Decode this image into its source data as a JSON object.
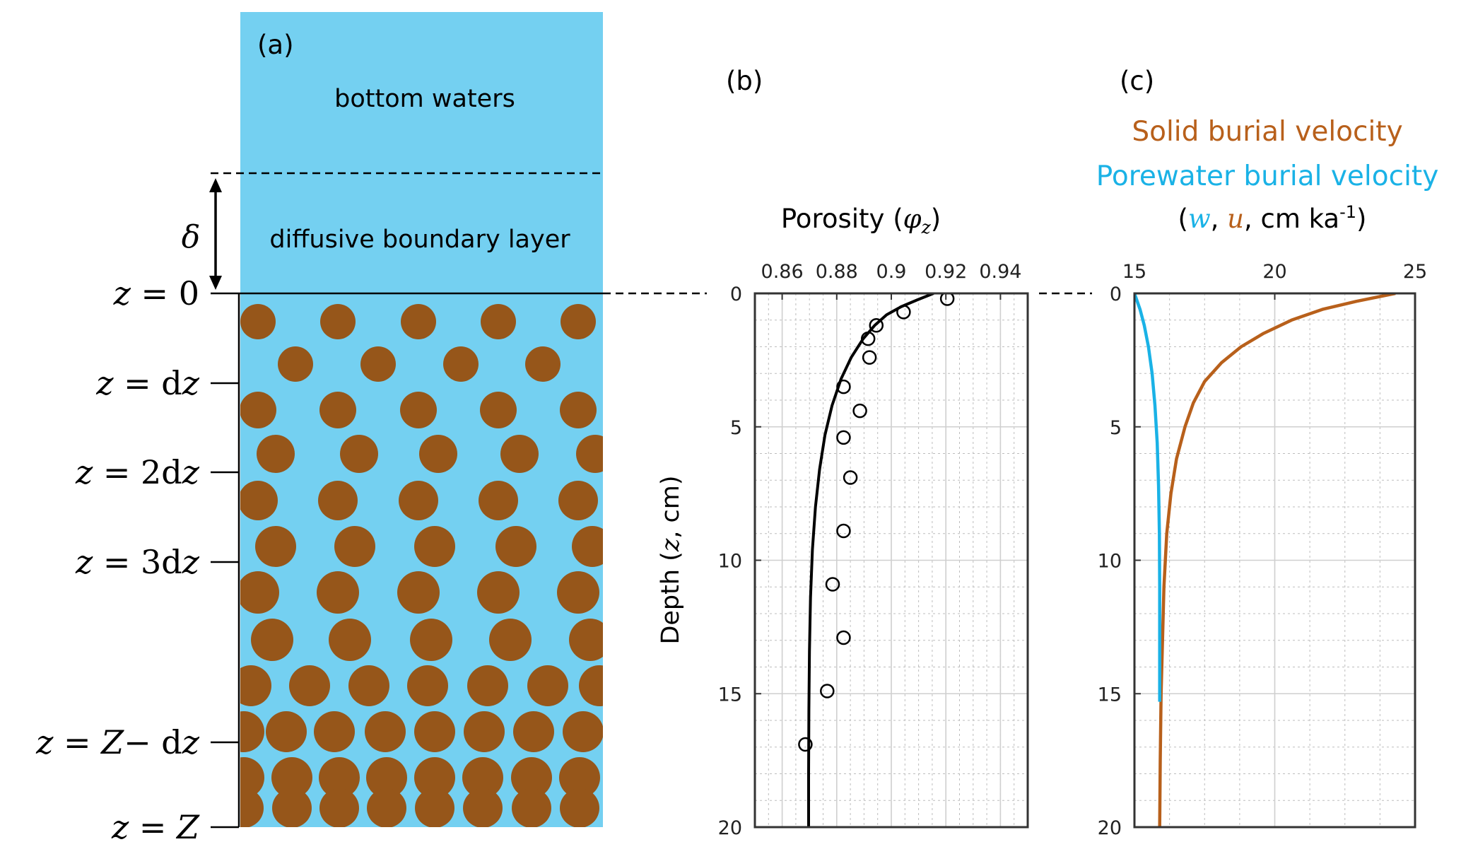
{
  "panel_a": {
    "label": "(a)",
    "water_label": "bottom waters",
    "dbl_label": "diffusive boundary layer",
    "delta_symbol": "δ",
    "depth_labels": [
      {
        "left": "z",
        "right": "0"
      },
      {
        "left": "z",
        "right": "dz"
      },
      {
        "left": "z",
        "right": "2dz"
      },
      {
        "left": "z",
        "right": "3dz"
      },
      {
        "left": "z",
        "right": "Z− dz"
      },
      {
        "left": "z",
        "right": "Z"
      }
    ],
    "colors": {
      "water": "#74D0F1",
      "grain": "#96561A"
    }
  },
  "chart_data": [
    {
      "type": "scatter",
      "panel_label": "(b)",
      "title": "Porosity (φz)",
      "xlabel": "Porosity (φz)",
      "ylabel": "Depth (z, cm)",
      "x_axis_position": "top",
      "y_reversed": true,
      "xlim": [
        0.85,
        0.95
      ],
      "ylim": [
        0,
        20
      ],
      "xticks": [
        0.86,
        0.88,
        0.9,
        0.92,
        0.94
      ],
      "xtick_labels": [
        "0.86",
        "0.88",
        "0.9",
        "0.92",
        "0.94"
      ],
      "yticks": [
        0,
        5,
        10,
        15,
        20
      ],
      "ytick_labels": [
        "0",
        "5",
        "10",
        "15",
        "20"
      ],
      "grid": true,
      "series": [
        {
          "kind": "line",
          "color": "#000000",
          "points": [
            [
              0.9155,
              0
            ],
            [
              0.9094,
              0.25
            ],
            [
              0.9036,
              0.5
            ],
            [
              0.8983,
              0.8
            ],
            [
              0.8939,
              1.2
            ],
            [
              0.8897,
              1.7
            ],
            [
              0.8853,
              2.4
            ],
            [
              0.8816,
              3.2
            ],
            [
              0.8783,
              4.2
            ],
            [
              0.8757,
              5.3
            ],
            [
              0.8737,
              6.6
            ],
            [
              0.8722,
              8.0
            ],
            [
              0.8711,
              9.6
            ],
            [
              0.8704,
              11.4
            ],
            [
              0.87,
              13.4
            ],
            [
              0.8698,
              15.6
            ],
            [
              0.8697,
              18
            ],
            [
              0.8697,
              20
            ]
          ]
        },
        {
          "kind": "scatter",
          "color": "#000000",
          "points": [
            [
              0.9205,
              0.2
            ],
            [
              0.9045,
              0.7
            ],
            [
              0.8945,
              1.2
            ],
            [
              0.8915,
              1.7
            ],
            [
              0.892,
              2.4
            ],
            [
              0.8825,
              3.5
            ],
            [
              0.8885,
              4.4
            ],
            [
              0.8825,
              5.4
            ],
            [
              0.885,
              6.9
            ],
            [
              0.8825,
              8.9
            ],
            [
              0.8785,
              10.9
            ],
            [
              0.8825,
              12.9
            ],
            [
              0.8765,
              14.9
            ],
            [
              0.8685,
              16.9
            ]
          ]
        }
      ]
    },
    {
      "type": "line",
      "panel_label": "(c)",
      "legend": [
        "Solid burial velocity",
        "Porewater burial velocity"
      ],
      "xlabel_parts": [
        "(",
        "w",
        ", ",
        "u",
        ", cm ka",
        "-1",
        ")"
      ],
      "x_axis_position": "top",
      "y_reversed": true,
      "xlim": [
        15,
        25
      ],
      "ylim": [
        0,
        20
      ],
      "xticks": [
        15,
        20,
        25
      ],
      "xtick_labels": [
        "15",
        "20",
        "25"
      ],
      "yticks": [
        0,
        5,
        10,
        15,
        20
      ],
      "ytick_labels": [
        "0",
        "5",
        "10",
        "15",
        "20"
      ],
      "grid": true,
      "series": [
        {
          "name": "Solid burial velocity",
          "color": "#B8601B",
          "points": [
            [
              24.3,
              0
            ],
            [
              22.9,
              0.3
            ],
            [
              21.7,
              0.6
            ],
            [
              20.6,
              1.0
            ],
            [
              19.6,
              1.5
            ],
            [
              18.8,
              2.0
            ],
            [
              18.1,
              2.6
            ],
            [
              17.5,
              3.3
            ],
            [
              17.1,
              4.1
            ],
            [
              16.8,
              5.0
            ],
            [
              16.5,
              6.2
            ],
            [
              16.3,
              7.5
            ],
            [
              16.15,
              9
            ],
            [
              16.05,
              11
            ],
            [
              16.0,
              13
            ],
            [
              15.95,
              15
            ],
            [
              15.92,
              17.5
            ],
            [
              15.9,
              20
            ]
          ]
        },
        {
          "name": "Porewater burial velocity",
          "color": "#1AB2E6",
          "points": [
            [
              15.0,
              0
            ],
            [
              15.2,
              0.6
            ],
            [
              15.35,
              1.2
            ],
            [
              15.5,
              2.0
            ],
            [
              15.63,
              3.0
            ],
            [
              15.73,
              4.2
            ],
            [
              15.81,
              5.6
            ],
            [
              15.86,
              7.2
            ],
            [
              15.89,
              9
            ],
            [
              15.9,
              11
            ],
            [
              15.9,
              13
            ],
            [
              15.9,
              15.3
            ]
          ]
        }
      ]
    }
  ]
}
